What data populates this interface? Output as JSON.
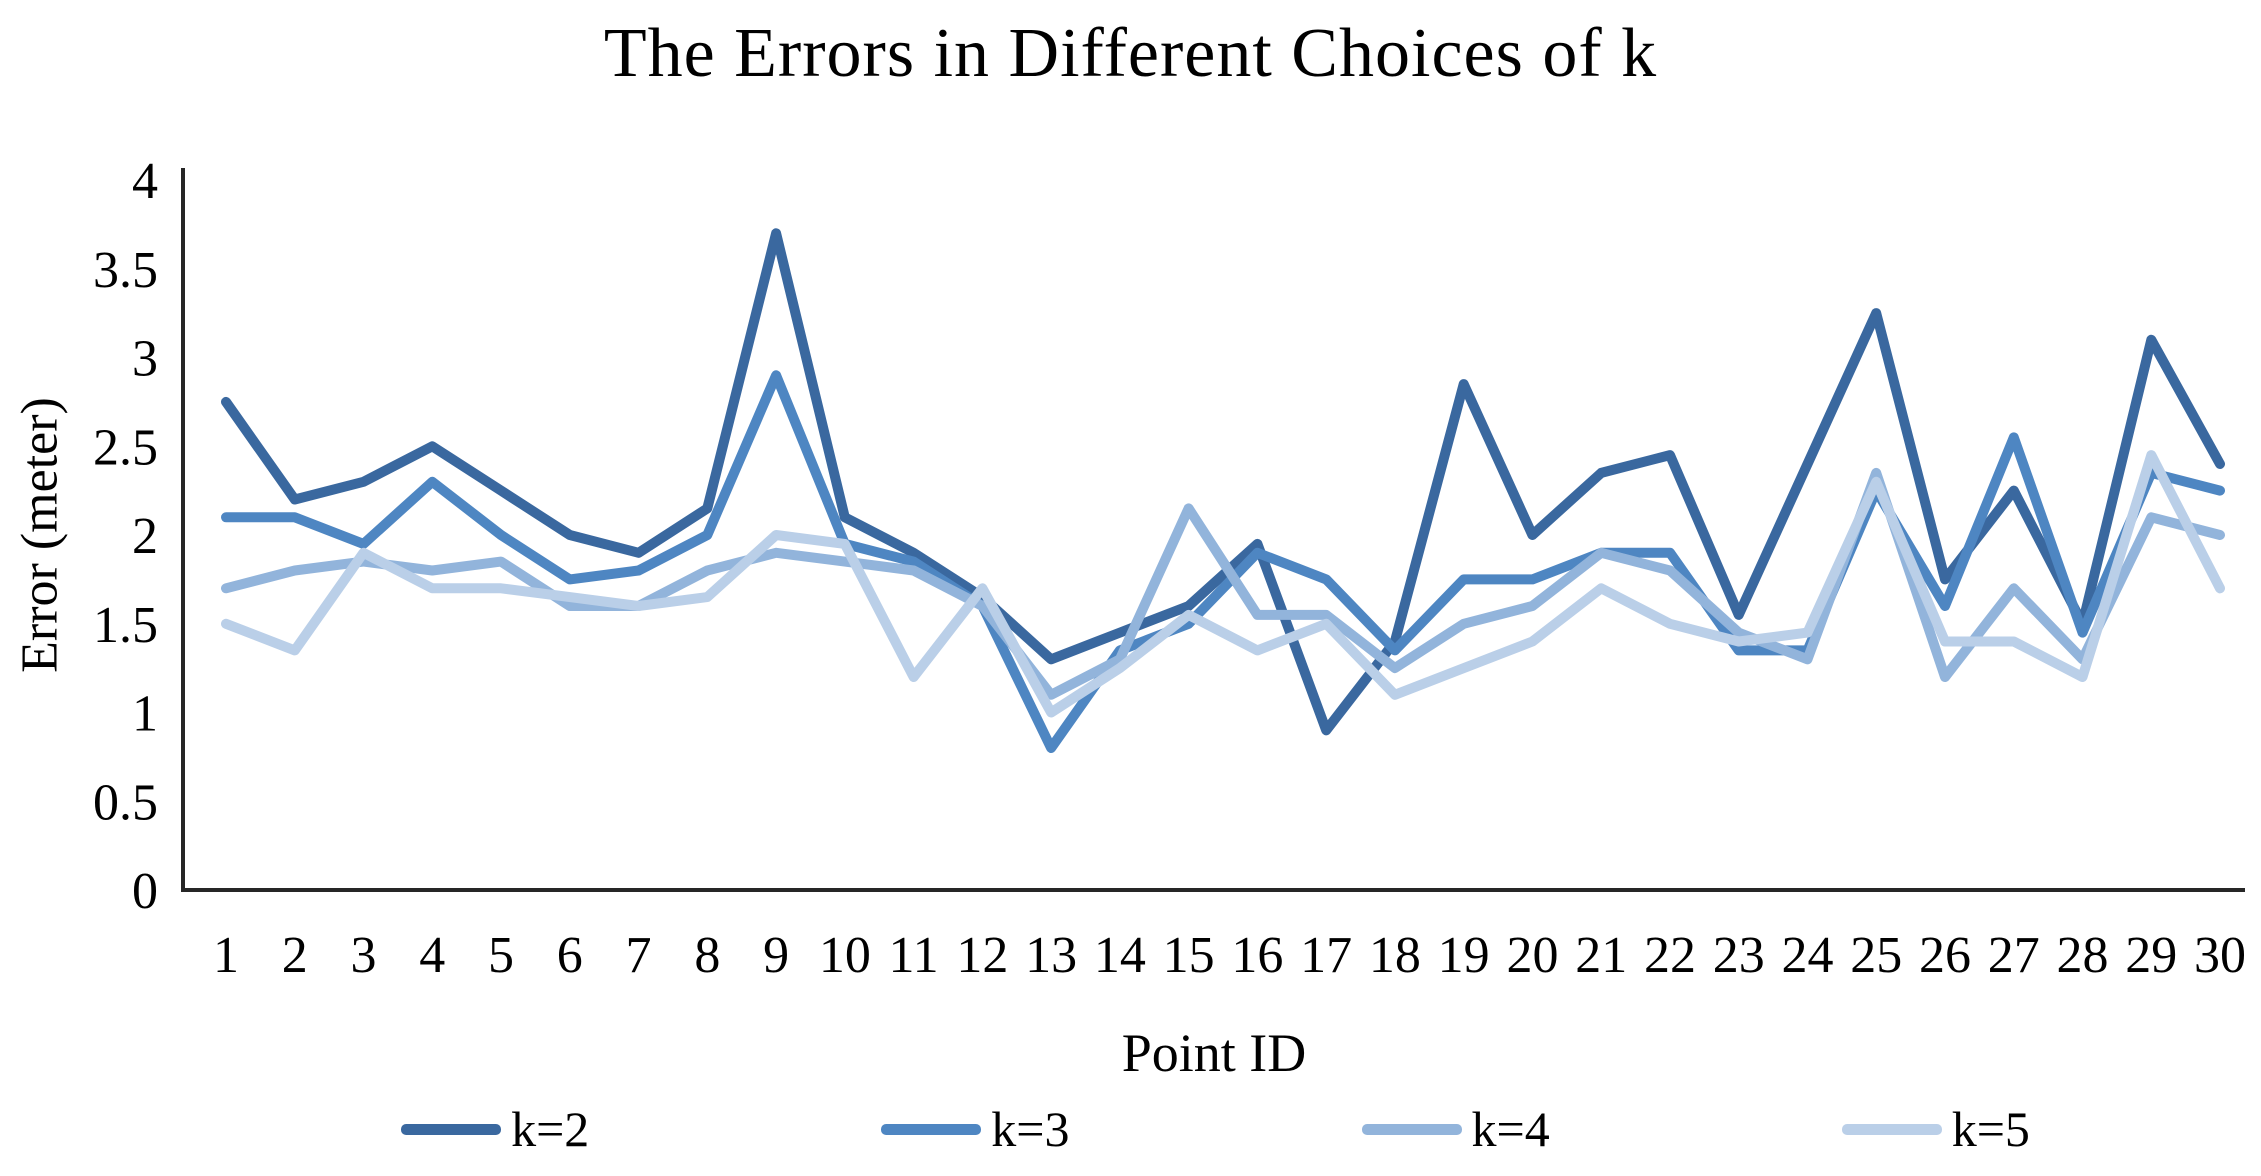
{
  "figure": {
    "title": "The Errors in Different Choices of k",
    "y_axis_title": "Error (meter)",
    "x_axis_title": "Point ID"
  },
  "colors": {
    "axis": "#262626",
    "text": "#000000",
    "k2": "#3A689F",
    "k3": "#4E86C2",
    "k4": "#92B4DB",
    "k5": "#BACFE8"
  },
  "legend": {
    "entries": [
      {
        "label": "k=2",
        "color": "#3A689F"
      },
      {
        "label": "k=3",
        "color": "#4E86C2"
      },
      {
        "label": "k=4",
        "color": "#92B4DB"
      },
      {
        "label": "k=5",
        "color": "#BACFE8"
      }
    ]
  },
  "chart_data": {
    "type": "line",
    "title": "The Errors in Different Choices of k",
    "xlabel": "Point ID",
    "ylabel": "Error (meter)",
    "x": [
      1,
      2,
      3,
      4,
      5,
      6,
      7,
      8,
      9,
      10,
      11,
      12,
      13,
      14,
      15,
      16,
      17,
      18,
      19,
      20,
      21,
      22,
      23,
      24,
      25,
      26,
      27,
      28,
      29,
      30
    ],
    "y_ticks": [
      0,
      0.5,
      1,
      1.5,
      2,
      2.5,
      3,
      3.5,
      4
    ],
    "ylim": [
      0,
      4
    ],
    "grid": false,
    "legend_position": "bottom",
    "series": [
      {
        "name": "k=2",
        "color": "#3A689F",
        "values": [
          2.75,
          2.2,
          2.3,
          2.5,
          2.25,
          2.0,
          1.9,
          2.15,
          3.7,
          2.1,
          1.9,
          1.65,
          1.3,
          1.45,
          1.6,
          1.95,
          0.9,
          1.4,
          2.85,
          2.0,
          2.35,
          2.45,
          1.55,
          2.4,
          3.25,
          1.75,
          2.25,
          1.5,
          3.1,
          2.4
        ]
      },
      {
        "name": "k=3",
        "color": "#4E86C2",
        "values": [
          2.1,
          2.1,
          1.95,
          2.3,
          2.0,
          1.75,
          1.8,
          2.0,
          2.9,
          1.95,
          1.85,
          1.6,
          0.8,
          1.35,
          1.5,
          1.9,
          1.75,
          1.35,
          1.75,
          1.75,
          1.9,
          1.9,
          1.35,
          1.35,
          2.25,
          1.6,
          2.55,
          1.45,
          2.35,
          2.25
        ]
      },
      {
        "name": "k=4",
        "color": "#92B4DB",
        "values": [
          1.7,
          1.8,
          1.85,
          1.8,
          1.85,
          1.6,
          1.6,
          1.8,
          1.9,
          1.85,
          1.8,
          1.6,
          1.1,
          1.3,
          2.15,
          1.55,
          1.55,
          1.25,
          1.5,
          1.6,
          1.9,
          1.8,
          1.45,
          1.3,
          2.35,
          1.2,
          1.7,
          1.3,
          2.1,
          2.0
        ]
      },
      {
        "name": "k=5",
        "color": "#BACFE8",
        "values": [
          1.5,
          1.35,
          1.9,
          1.7,
          1.7,
          1.65,
          1.6,
          1.65,
          2.0,
          1.95,
          1.2,
          1.7,
          1.0,
          1.25,
          1.55,
          1.35,
          1.5,
          1.1,
          1.25,
          1.4,
          1.7,
          1.5,
          1.4,
          1.45,
          2.3,
          1.4,
          1.4,
          1.2,
          2.45,
          1.7
        ]
      }
    ]
  }
}
